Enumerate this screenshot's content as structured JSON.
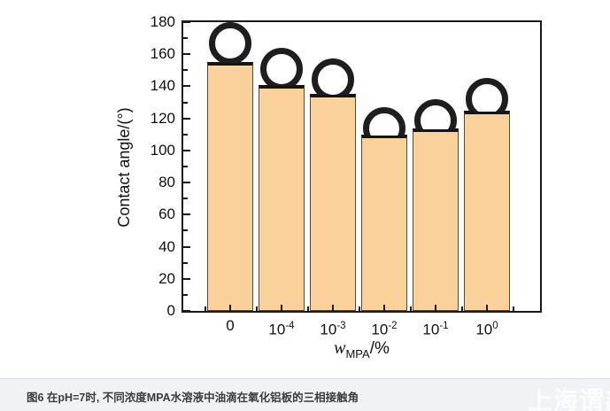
{
  "figure": {
    "caption": "图6 在pH=7时, 不同浓度MPA水溶液中油滴在氧化铝板的三相接触角",
    "watermark": "上海谓鑫",
    "caption_bg": "#f1f2f6",
    "caption_border": "#d9dbe1"
  },
  "chart_data": {
    "type": "bar",
    "title": "",
    "ylabel": "Contact angle/(°)",
    "xlabel_plain": "w_MPA/%",
    "xlabel_parts": {
      "var": "w",
      "sub": "MPA",
      "unit": "/%"
    },
    "categories": [
      "0",
      "10⁻⁴",
      "10⁻³",
      "10⁻²",
      "10⁻¹",
      "10⁰"
    ],
    "categories_rich": [
      {
        "base": "0",
        "sup": ""
      },
      {
        "base": "10",
        "sup": "-4"
      },
      {
        "base": "10",
        "sup": "-3"
      },
      {
        "base": "10",
        "sup": "-2"
      },
      {
        "base": "10",
        "sup": "-1"
      },
      {
        "base": "10",
        "sup": "0"
      }
    ],
    "values": [
      155,
      141,
      135,
      110,
      114,
      125
    ],
    "ylim": [
      0,
      180
    ],
    "ytick_major": 20,
    "ytick_minor": 10,
    "grid": false,
    "legend": "none",
    "annotation": "oil-droplet photo sits on top of each bar",
    "bar_fill": "#fbd19b",
    "bar_border": "#5a4a33",
    "bar_cap": "#141414",
    "droplet_outline": "#1e1e1e",
    "droplet_fill": "#ffffff",
    "frame_color": "#1a1a1a"
  }
}
